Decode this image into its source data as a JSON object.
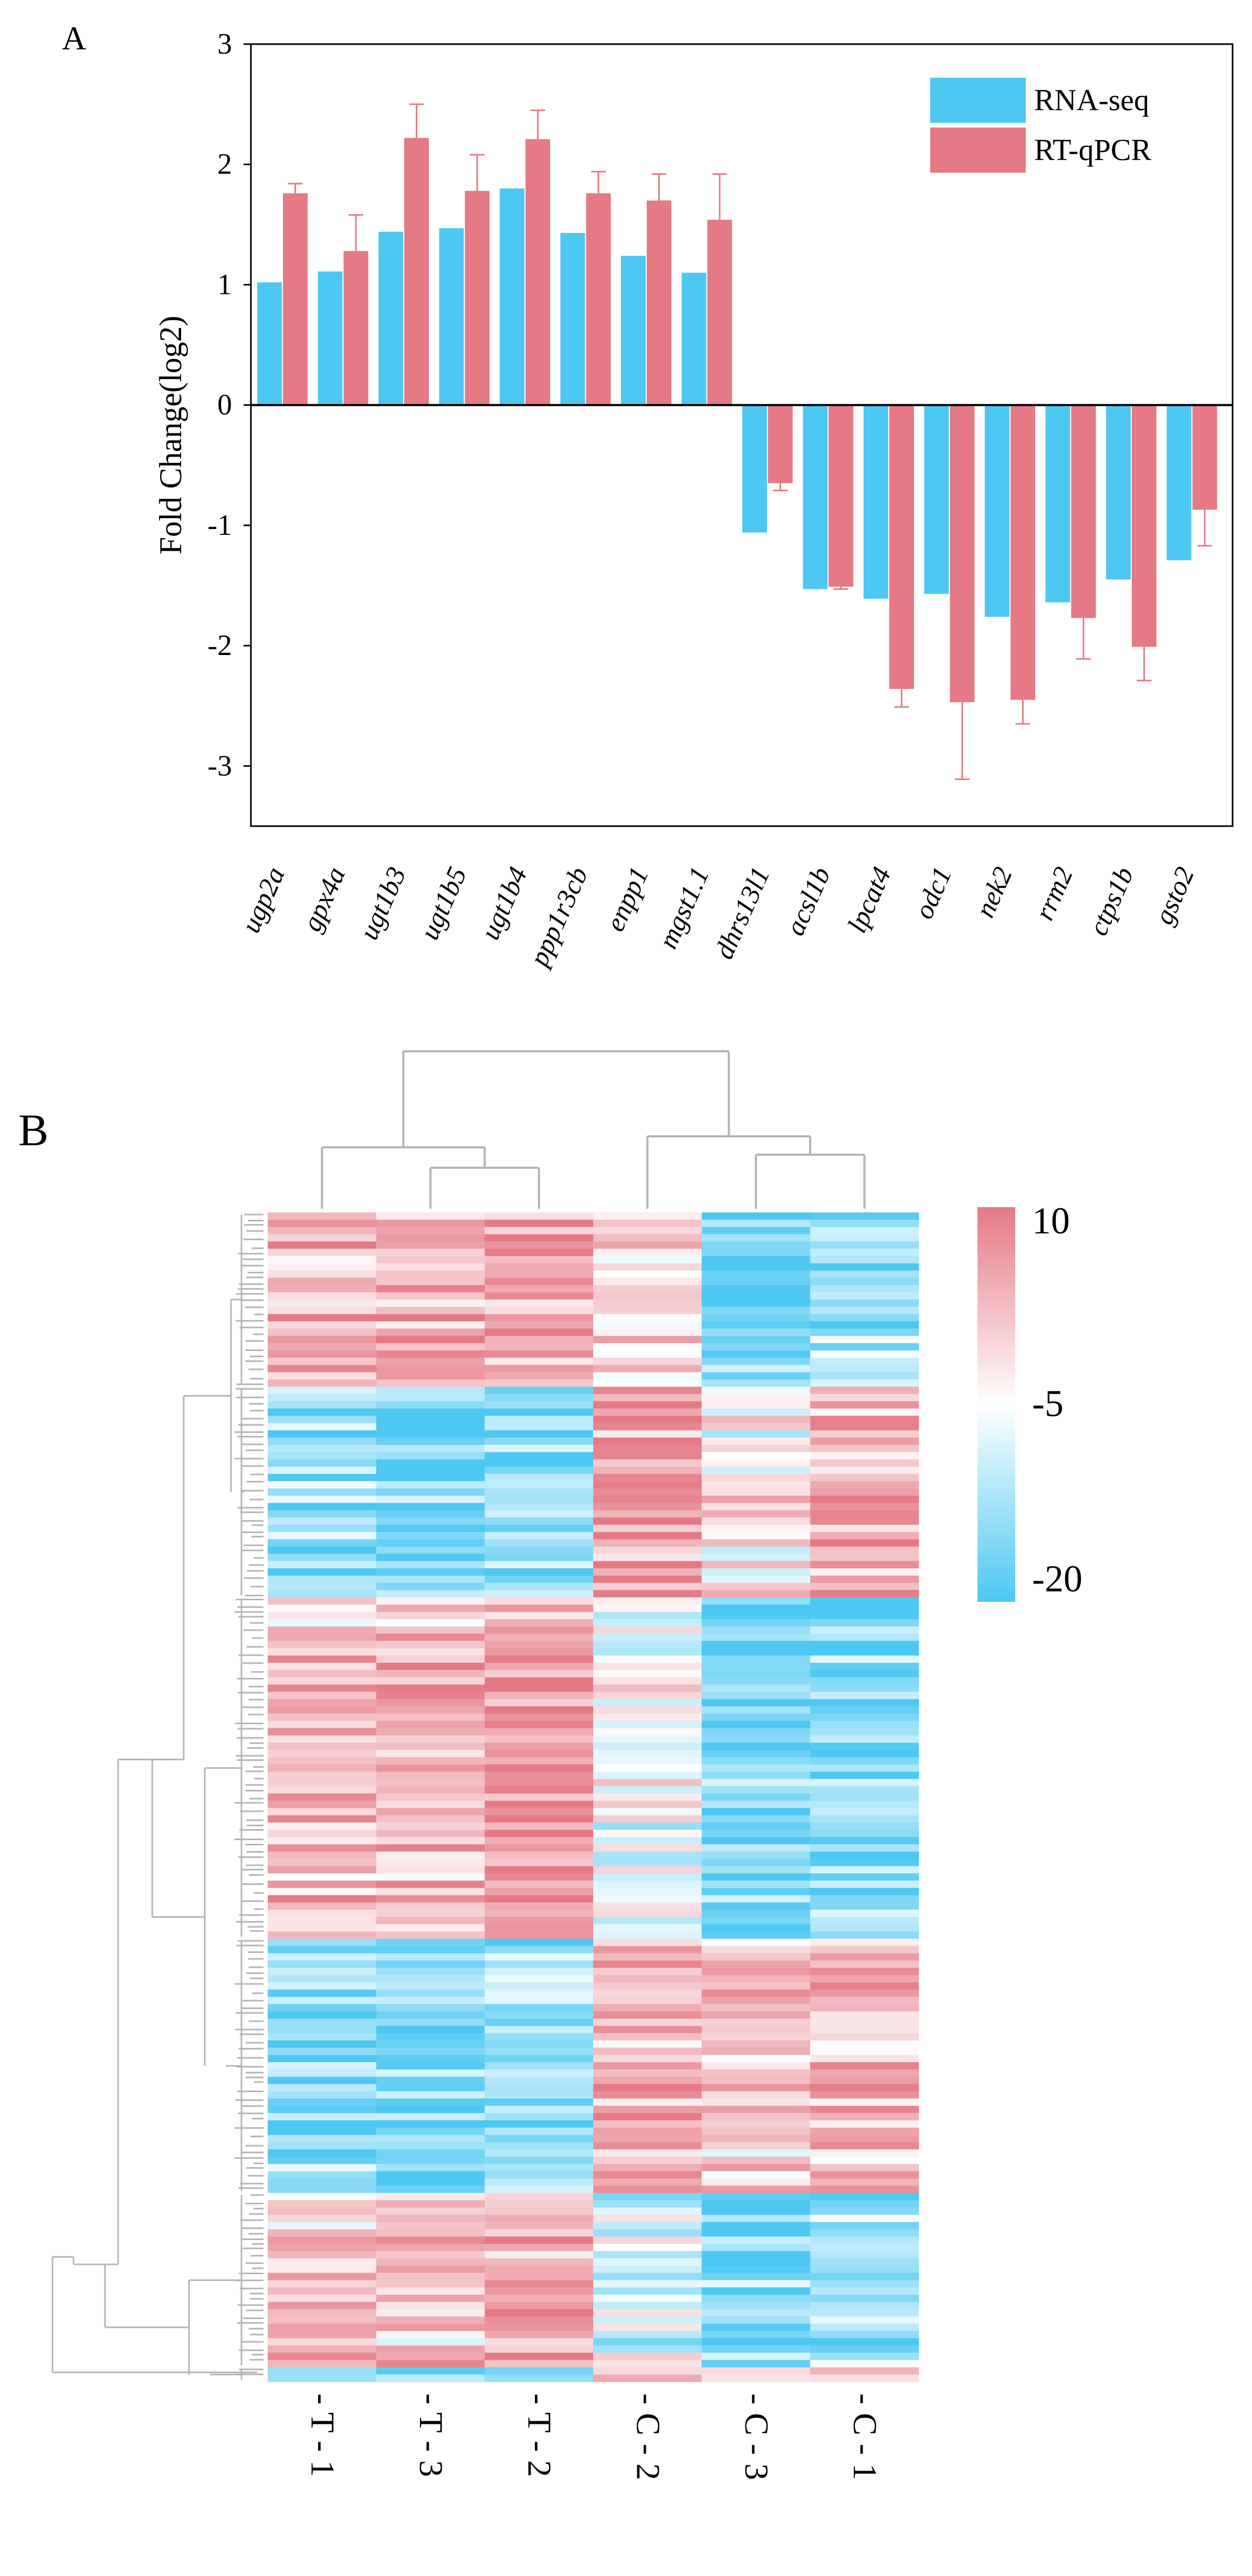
{
  "chart_data": [
    {
      "type": "bar",
      "panel_label": "A",
      "ylabel": "Fold Change(log2)",
      "ylim": [
        -3.5,
        3
      ],
      "yticks": [
        3,
        2,
        1,
        0,
        -1,
        -2,
        -3
      ],
      "ytick_labels": [
        "3",
        "2",
        "1",
        "0",
        "-1",
        "-2",
        "-3"
      ],
      "categories": [
        "ugp2a",
        "gpx4a",
        "ugt1b3",
        "ugt1b5",
        "ugt1b4",
        "ppp1r3cb",
        "enpp1",
        "mgst1.1",
        "dhrs13l1",
        "acsl1b",
        "lpcat4",
        "odc1",
        "nek2",
        "rrm2",
        "ctps1b",
        "gsto2"
      ],
      "series": [
        {
          "name": "RNA-seq",
          "color": "#4DC8F2",
          "values": [
            1.02,
            1.11,
            1.44,
            1.47,
            1.8,
            1.43,
            1.24,
            1.1,
            -1.06,
            -1.53,
            -1.61,
            -1.57,
            -1.76,
            -1.64,
            -1.45,
            -1.29
          ],
          "errors": null
        },
        {
          "name": "RT-qPCR",
          "color": "#E57A84",
          "values": [
            1.76,
            1.28,
            2.22,
            1.78,
            2.21,
            1.76,
            1.7,
            1.54,
            -0.65,
            -1.51,
            -2.36,
            -2.47,
            -2.45,
            -1.77,
            -2.01,
            -0.87
          ],
          "errors": [
            0.08,
            0.3,
            0.28,
            0.3,
            0.24,
            0.18,
            0.22,
            0.38,
            0.06,
            0.02,
            0.15,
            0.64,
            0.2,
            0.34,
            0.28,
            0.3
          ]
        }
      ],
      "legend_position": "top-right"
    },
    {
      "type": "heatmap",
      "panel_label": "B",
      "columns": [
        "- T - 1",
        "- T - 3",
        "- T - 2",
        "- C - 2",
        "- C - 3",
        "- C - 1"
      ],
      "colorbar_ticks": [
        10,
        -5,
        -20
      ],
      "colorbar_tick_labels": [
        "10",
        "-5",
        "-20"
      ],
      "value_range": [
        -20,
        10
      ],
      "colors": {
        "high": "#E57A84",
        "mid": "#FFFFFF",
        "low": "#4DC8F2"
      },
      "clusters": [
        {
          "rows": 24,
          "pattern": [
            2,
            4,
            6,
            -2,
            -17,
            -13
          ]
        },
        {
          "rows": 29,
          "pattern": [
            -14,
            -17,
            -15,
            6,
            -3,
            3
          ]
        },
        {
          "rows": 47,
          "pattern": [
            2,
            3,
            6,
            -6,
            -17,
            -15
          ]
        },
        {
          "rows": 35,
          "pattern": [
            -14,
            -15,
            -13,
            5,
            2,
            4
          ]
        },
        {
          "rows": 24,
          "pattern": [
            1,
            1,
            3,
            -8,
            -16,
            -13
          ]
        },
        {
          "rows": 2,
          "pattern": [
            -13,
            -13,
            -13,
            0,
            -3,
            0
          ]
        }
      ]
    }
  ]
}
